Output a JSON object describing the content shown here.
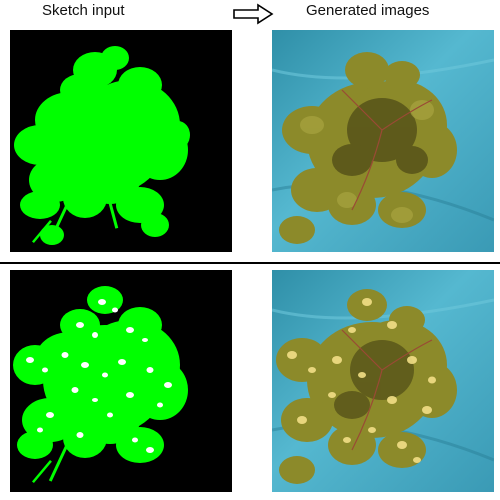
{
  "header": {
    "left_label": "Sketch input",
    "right_label": "Generated images",
    "arrow_icon": "right-arrow-icon"
  },
  "colors": {
    "sketch_background": "#000000",
    "sketch_foreground": "#00ff00",
    "sketch_spots": "#ffffff",
    "backdrop": "#4aaec6",
    "foliage": "#8c8a2a",
    "foliage_shadow": "#4f4b17",
    "divider": "#000000"
  },
  "rows": [
    {
      "sketch": "green-plant-sketch",
      "generated": "generated-plant-photo"
    },
    {
      "sketch": "green-plant-sketch-with-white-spots",
      "generated": "generated-plant-photo-with-yellow-spots"
    }
  ]
}
